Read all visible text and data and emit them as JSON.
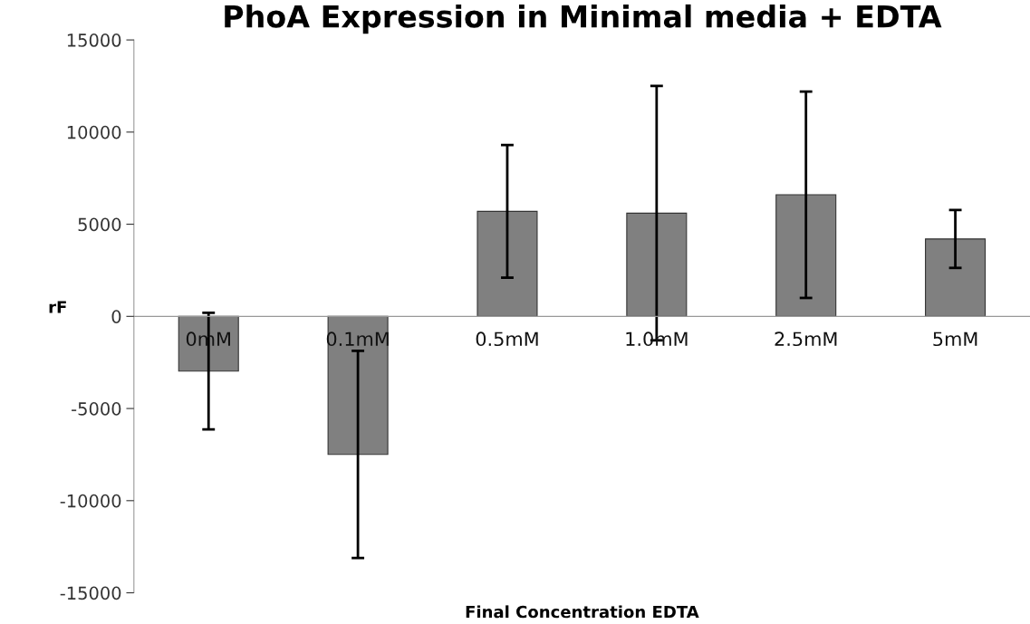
{
  "chart_data": {
    "type": "bar",
    "title": "PhoA Expression in Minimal media + EDTA",
    "xlabel": "Final Concentration EDTA",
    "ylabel": "rF",
    "categories": [
      "0mM",
      "0.1mM",
      "0.5mM",
      "1.0mM",
      "2.5mM",
      "5mM"
    ],
    "values": [
      -2970,
      -7490,
      5700,
      5600,
      6600,
      4200
    ],
    "errors": [
      3160,
      5620,
      3600,
      6900,
      5600,
      1570
    ],
    "color": "#808080",
    "ylim": [
      -15000,
      15000
    ],
    "yticks": [
      -15000,
      -10000,
      -5000,
      0,
      5000,
      10000,
      15000
    ],
    "grid": false
  }
}
